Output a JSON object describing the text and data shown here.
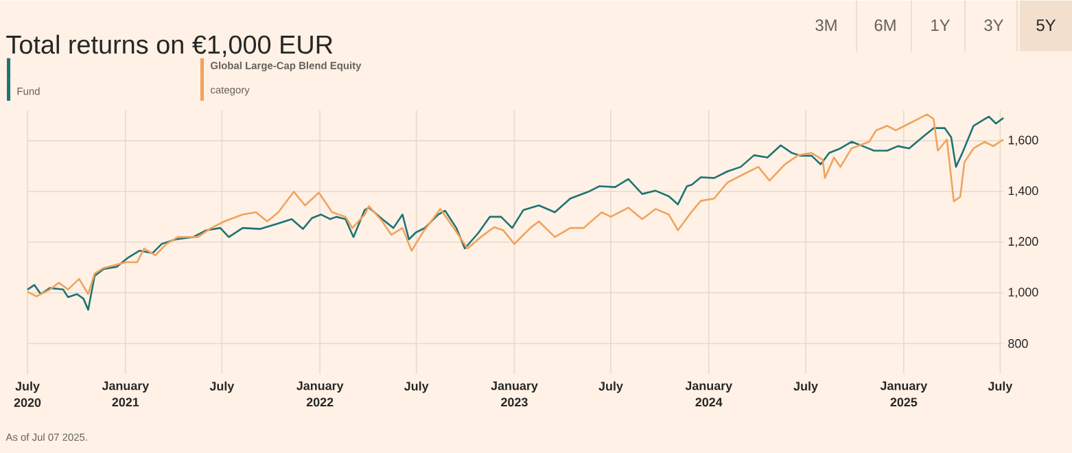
{
  "chart_data": {
    "type": "line",
    "title": "Total returns on €1,000 EUR",
    "xlim": [
      "2020-07-01",
      "2025-07-07"
    ],
    "ylim": [
      680,
      1720
    ],
    "xticks": [
      {
        "value": "2020-07-01",
        "label": "July 2020"
      },
      {
        "value": "2021-01-01",
        "label": "January 2021"
      },
      {
        "value": "2021-07-01",
        "label": "July"
      },
      {
        "value": "2022-01-01",
        "label": "January 2022"
      },
      {
        "value": "2022-07-01",
        "label": "July"
      },
      {
        "value": "2023-01-01",
        "label": "January 2023"
      },
      {
        "value": "2023-07-01",
        "label": "July"
      },
      {
        "value": "2024-01-01",
        "label": "January 2024"
      },
      {
        "value": "2024-07-01",
        "label": "July"
      },
      {
        "value": "2025-01-01",
        "label": "January 2025"
      },
      {
        "value": "2025-07-01",
        "label": "July"
      }
    ],
    "yticks": [
      {
        "value": 800,
        "label": "800"
      },
      {
        "value": 1000,
        "label": "1,000"
      },
      {
        "value": 1200,
        "label": "1,200"
      },
      {
        "value": 1400,
        "label": "1,400"
      },
      {
        "value": 1600,
        "label": "1,600"
      }
    ],
    "grid": true,
    "legend": "top left",
    "annotations": [
      "category",
      "As of Jul 07 2025.",
      "3M",
      "6M",
      "1Y",
      "3Y",
      "5Y"
    ],
    "series": [
      {
        "name": "Fund",
        "color": "#1d7373",
        "x": [
          "2020-07-01",
          "2020-07-14",
          "2020-07-26",
          "2020-08-12",
          "2020-09-06",
          "2020-09-15",
          "2020-10-02",
          "2020-10-14",
          "2020-10-23",
          "2020-11-04",
          "2020-11-21",
          "2020-12-16",
          "2021-01-06",
          "2021-01-27",
          "2021-02-21",
          "2021-03-10",
          "2021-04-05",
          "2021-05-08",
          "2021-06-02",
          "2021-06-28",
          "2021-07-14",
          "2021-08-09",
          "2021-09-11",
          "2021-10-15",
          "2021-11-09",
          "2021-11-30",
          "2021-12-17",
          "2022-01-03",
          "2022-01-20",
          "2022-02-01",
          "2022-02-18",
          "2022-03-05",
          "2022-03-26",
          "2022-04-03",
          "2022-04-28",
          "2022-05-19",
          "2022-06-05",
          "2022-06-17",
          "2022-06-30",
          "2022-07-17",
          "2022-08-11",
          "2022-08-24",
          "2022-09-14",
          "2022-09-30",
          "2022-10-26",
          "2022-11-16",
          "2022-12-07",
          "2022-12-28",
          "2023-01-18",
          "2023-02-16",
          "2023-03-18",
          "2023-04-16",
          "2023-05-20",
          "2023-06-10",
          "2023-07-09",
          "2023-08-03",
          "2023-08-29",
          "2023-09-23",
          "2023-10-18",
          "2023-11-04",
          "2023-11-21",
          "2023-11-30",
          "2023-12-17",
          "2024-01-11",
          "2024-02-05",
          "2024-03-01",
          "2024-03-26",
          "2024-04-20",
          "2024-05-15",
          "2024-06-05",
          "2024-06-21",
          "2024-07-12",
          "2024-07-29",
          "2024-08-14",
          "2024-09-04",
          "2024-09-25",
          "2024-10-16",
          "2024-11-06",
          "2024-12-01",
          "2024-12-21",
          "2025-01-11",
          "2025-02-05",
          "2025-02-26",
          "2025-03-19",
          "2025-03-31",
          "2025-04-09",
          "2025-04-21",
          "2025-05-12",
          "2025-06-02",
          "2025-06-10",
          "2025-06-23",
          "2025-07-07"
        ],
        "values": [
          1013,
          1031,
          995,
          1019,
          1013,
          983,
          995,
          977,
          933,
          1067,
          1094,
          1103,
          1139,
          1166,
          1157,
          1193,
          1211,
          1220,
          1247,
          1256,
          1220,
          1256,
          1252,
          1274,
          1291,
          1252,
          1295,
          1309,
          1291,
          1300,
          1291,
          1220,
          1327,
          1336,
          1291,
          1256,
          1309,
          1211,
          1238,
          1256,
          1309,
          1324,
          1256,
          1175,
          1238,
          1300,
          1300,
          1256,
          1327,
          1345,
          1318,
          1372,
          1399,
          1421,
          1417,
          1449,
          1390,
          1403,
          1381,
          1349,
          1421,
          1426,
          1456,
          1453,
          1479,
          1497,
          1543,
          1534,
          1582,
          1552,
          1541,
          1541,
          1507,
          1552,
          1570,
          1596,
          1579,
          1561,
          1561,
          1579,
          1570,
          1614,
          1650,
          1650,
          1614,
          1497,
          1552,
          1659,
          1686,
          1695,
          1668,
          1690
        ]
      },
      {
        "name": "Global Large-Cap Blend Equity",
        "color": "#f0a35e",
        "x": [
          "2020-07-01",
          "2020-07-18",
          "2020-08-12",
          "2020-08-29",
          "2020-09-15",
          "2020-10-06",
          "2020-10-23",
          "2020-11-04",
          "2020-11-21",
          "2021-01-02",
          "2021-01-23",
          "2021-02-05",
          "2021-02-26",
          "2021-03-19",
          "2021-04-09",
          "2021-05-17",
          "2021-06-11",
          "2021-07-06",
          "2021-08-09",
          "2021-09-03",
          "2021-09-24",
          "2021-10-15",
          "2021-11-13",
          "2021-12-04",
          "2021-12-30",
          "2022-01-24",
          "2022-02-18",
          "2022-03-03",
          "2022-03-26",
          "2022-04-03",
          "2022-04-28",
          "2022-05-15",
          "2022-06-05",
          "2022-06-22",
          "2022-07-13",
          "2022-08-15",
          "2022-09-09",
          "2022-10-05",
          "2022-10-30",
          "2022-11-24",
          "2022-12-11",
          "2023-01-01",
          "2023-01-31",
          "2023-02-16",
          "2023-03-18",
          "2023-04-16",
          "2023-05-11",
          "2023-06-14",
          "2023-07-01",
          "2023-08-03",
          "2023-08-29",
          "2023-09-23",
          "2023-10-18",
          "2023-11-04",
          "2023-11-29",
          "2023-12-17",
          "2024-01-11",
          "2024-02-05",
          "2024-03-09",
          "2024-04-03",
          "2024-04-24",
          "2024-05-23",
          "2024-06-17",
          "2024-07-12",
          "2024-08-02",
          "2024-08-06",
          "2024-08-23",
          "2024-09-04",
          "2024-09-25",
          "2024-10-28",
          "2024-11-10",
          "2024-12-01",
          "2024-12-17",
          "2025-01-11",
          "2025-02-14",
          "2025-02-26",
          "2025-03-06",
          "2025-03-23",
          "2025-04-05",
          "2025-04-17",
          "2025-04-25",
          "2025-05-12",
          "2025-06-02",
          "2025-06-18",
          "2025-07-07"
        ],
        "values": [
          1004,
          986,
          1013,
          1040,
          1013,
          1055,
          995,
          1076,
          1098,
          1121,
          1121,
          1175,
          1148,
          1193,
          1220,
          1220,
          1256,
          1282,
          1309,
          1318,
          1282,
          1318,
          1399,
          1345,
          1395,
          1318,
          1300,
          1256,
          1309,
          1342,
          1282,
          1229,
          1256,
          1166,
          1238,
          1331,
          1256,
          1175,
          1220,
          1259,
          1247,
          1193,
          1256,
          1282,
          1220,
          1256,
          1256,
          1318,
          1300,
          1336,
          1291,
          1331,
          1309,
          1247,
          1318,
          1363,
          1372,
          1435,
          1471,
          1497,
          1443,
          1507,
          1543,
          1552,
          1525,
          1453,
          1534,
          1497,
          1570,
          1596,
          1641,
          1659,
          1641,
          1668,
          1704,
          1686,
          1561,
          1605,
          1361,
          1379,
          1516,
          1570,
          1596,
          1579,
          1605
        ]
      }
    ]
  }
}
